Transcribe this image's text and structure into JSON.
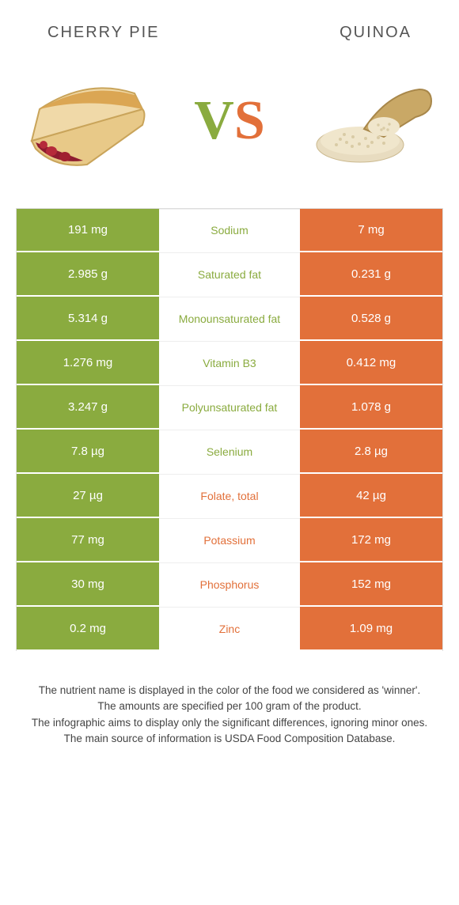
{
  "header": {
    "left_title": "CHERRY PIE",
    "right_title": "QUINOA",
    "vs_v": "V",
    "vs_s": "S"
  },
  "colors": {
    "green": "#8aab3f",
    "orange": "#e2703a",
    "text": "#444",
    "bg": "#ffffff"
  },
  "rows": [
    {
      "left": "191 mg",
      "label": "Sodium",
      "right": "7 mg",
      "winner": "left"
    },
    {
      "left": "2.985 g",
      "label": "Saturated fat",
      "right": "0.231 g",
      "winner": "left"
    },
    {
      "left": "5.314 g",
      "label": "Monounsaturated fat",
      "right": "0.528 g",
      "winner": "left"
    },
    {
      "left": "1.276 mg",
      "label": "Vitamin B3",
      "right": "0.412 mg",
      "winner": "left"
    },
    {
      "left": "3.247 g",
      "label": "Polyunsaturated fat",
      "right": "1.078 g",
      "winner": "left"
    },
    {
      "left": "7.8 µg",
      "label": "Selenium",
      "right": "2.8 µg",
      "winner": "left"
    },
    {
      "left": "27 µg",
      "label": "Folate, total",
      "right": "42 µg",
      "winner": "right"
    },
    {
      "left": "77 mg",
      "label": "Potassium",
      "right": "172 mg",
      "winner": "right"
    },
    {
      "left": "30 mg",
      "label": "Phosphorus",
      "right": "152 mg",
      "winner": "right"
    },
    {
      "left": "0.2 mg",
      "label": "Zinc",
      "right": "1.09 mg",
      "winner": "right"
    }
  ],
  "footnote": {
    "l1": "The nutrient name is displayed in the color of the food we considered as 'winner'.",
    "l2": "The amounts are specified per 100 gram of the product.",
    "l3": "The infographic aims to display only the significant differences, ignoring minor ones.",
    "l4": "The main source of information is USDA Food Composition Database."
  }
}
